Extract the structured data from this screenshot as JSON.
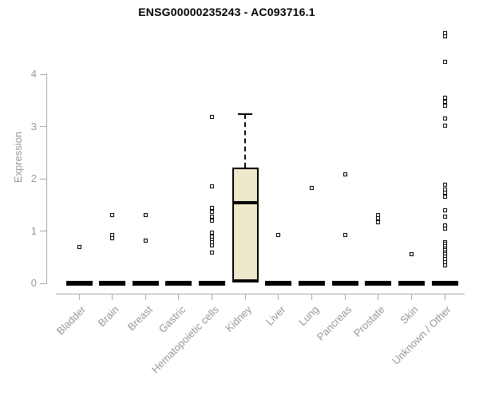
{
  "header": {
    "title": "ENSG00000235243 - AC093716.1"
  },
  "chart_data": {
    "type": "boxplot",
    "title": "ENSG00000235243 - AC093716.1",
    "ylabel": "Expression",
    "xlabel": "",
    "ylim": [
      0,
      4.9
    ],
    "yticks": [
      0,
      1,
      2,
      3,
      4
    ],
    "grid": false,
    "legend": "none",
    "categories": [
      "Bladder",
      "Brain",
      "Breast",
      "Gastric",
      "Hematopoietic cells",
      "Kidney",
      "Liver",
      "Lung",
      "Pancreas",
      "Prostate",
      "Skin",
      "Unknown / Other"
    ],
    "boxes": [
      {
        "category": "Bladder",
        "q1": 0,
        "median": 0,
        "q3": 0,
        "whisker_low": 0,
        "whisker_high": 0,
        "outliers": [
          0.7
        ]
      },
      {
        "category": "Brain",
        "q1": 0,
        "median": 0,
        "q3": 0,
        "whisker_low": 0,
        "whisker_high": 0,
        "outliers": [
          1.31,
          0.93,
          0.87
        ]
      },
      {
        "category": "Breast",
        "q1": 0,
        "median": 0,
        "q3": 0,
        "whisker_low": 0,
        "whisker_high": 0,
        "outliers": [
          1.3,
          0.81
        ]
      },
      {
        "category": "Gastric",
        "q1": 0,
        "median": 0,
        "q3": 0,
        "whisker_low": 0,
        "whisker_high": 0,
        "outliers": []
      },
      {
        "category": "Hematopoietic cells",
        "q1": 0,
        "median": 0,
        "q3": 0,
        "whisker_low": 0,
        "whisker_high": 0,
        "outliers": [
          3.19,
          1.86,
          1.44,
          1.36,
          1.28,
          1.2,
          0.97,
          0.9,
          0.83,
          0.78,
          0.72,
          0.59
        ]
      },
      {
        "category": "Kidney",
        "q1": 0.02,
        "median": 1.54,
        "q3": 2.21,
        "whisker_low": 0.02,
        "whisker_high": 3.24,
        "outliers": []
      },
      {
        "category": "Liver",
        "q1": 0,
        "median": 0,
        "q3": 0,
        "whisker_low": 0,
        "whisker_high": 0,
        "outliers": [
          0.92
        ]
      },
      {
        "category": "Lung",
        "q1": 0,
        "median": 0,
        "q3": 0,
        "whisker_low": 0,
        "whisker_high": 0,
        "outliers": [
          1.82
        ]
      },
      {
        "category": "Pancreas",
        "q1": 0,
        "median": 0,
        "q3": 0,
        "whisker_low": 0,
        "whisker_high": 0,
        "outliers": [
          2.08,
          0.93
        ]
      },
      {
        "category": "Prostate",
        "q1": 0,
        "median": 0,
        "q3": 0,
        "whisker_low": 0,
        "whisker_high": 0,
        "outliers": [
          1.3,
          1.24,
          1.17
        ]
      },
      {
        "category": "Skin",
        "q1": 0,
        "median": 0,
        "q3": 0,
        "whisker_low": 0,
        "whisker_high": 0,
        "outliers": [
          0.55
        ]
      },
      {
        "category": "Unknown / Other",
        "q1": 0,
        "median": 0,
        "q3": 0,
        "whisker_low": 0,
        "whisker_high": 0,
        "outliers": [
          4.78,
          4.73,
          4.24,
          3.55,
          3.47,
          3.39,
          3.16,
          3.02,
          1.88,
          1.8,
          1.73,
          1.65,
          1.4,
          1.27,
          1.11,
          1.04,
          0.79,
          0.75,
          0.71,
          0.67,
          0.63,
          0.59,
          0.55,
          0.51,
          0.46,
          0.4,
          0.35
        ]
      }
    ],
    "colors": {
      "box_fill": "#ede8cc",
      "box_border": "#000000",
      "median": "#000000",
      "zero_bar": "#000000",
      "outlier": "#000000",
      "axis": "#ababab",
      "tick_label": "#979797",
      "title": "#000000"
    }
  }
}
